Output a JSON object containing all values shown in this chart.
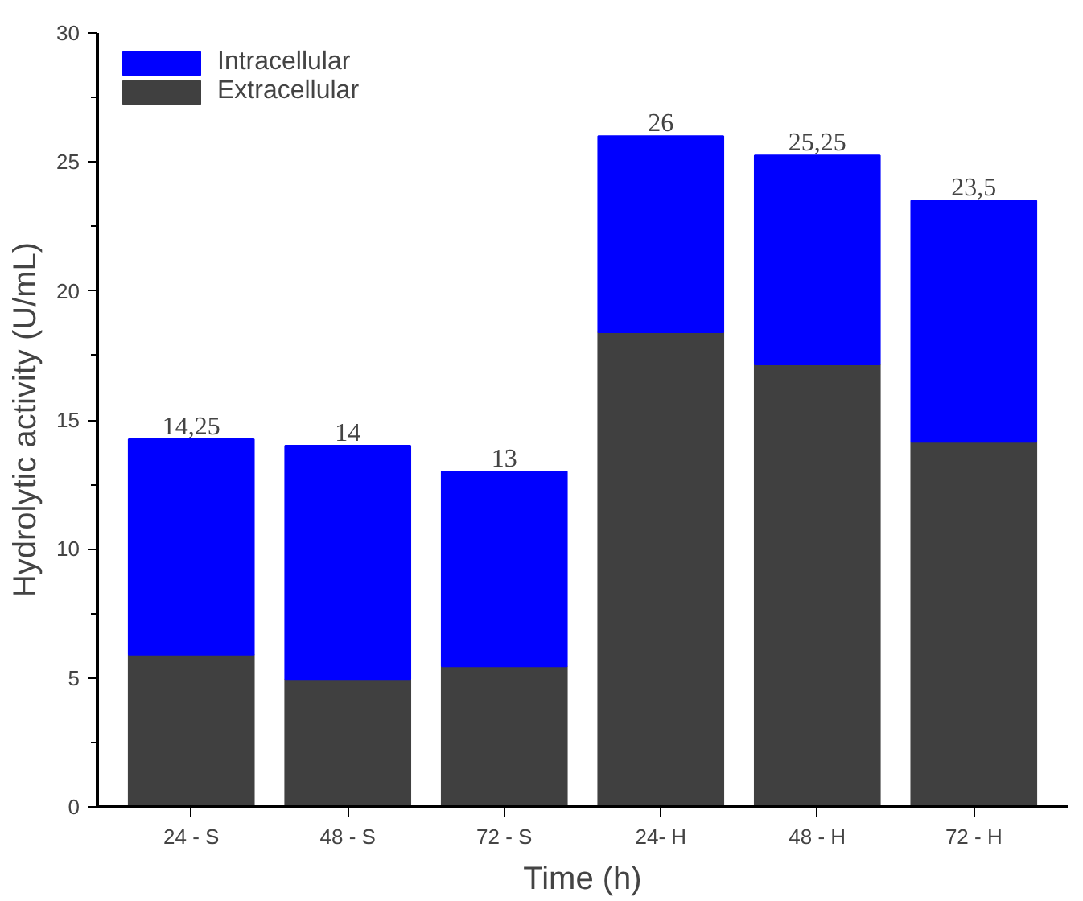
{
  "chart_data": {
    "type": "bar",
    "stacked": true,
    "xlabel": "Time (h)",
    "ylabel": "Hydrolytic activity (U/mL)",
    "categories": [
      "24 - S",
      "48 - S",
      "72 - S",
      "24- H",
      "48 - H",
      "72 - H"
    ],
    "series": [
      {
        "name": "Extracellular",
        "color": "#404040",
        "values": [
          5.9,
          4.95,
          5.45,
          18.4,
          17.15,
          14.15
        ]
      },
      {
        "name": "Intracellular",
        "color": "#0000ff",
        "values": [
          8.35,
          9.05,
          7.55,
          7.6,
          8.1,
          9.35
        ]
      }
    ],
    "totals": [
      "14,25",
      "14",
      "13",
      "26",
      "25,25",
      "23,5"
    ],
    "ylim": [
      0,
      30
    ],
    "yticks": [
      0,
      5,
      10,
      15,
      20,
      25,
      30
    ],
    "grid": false,
    "legend": "top left"
  }
}
